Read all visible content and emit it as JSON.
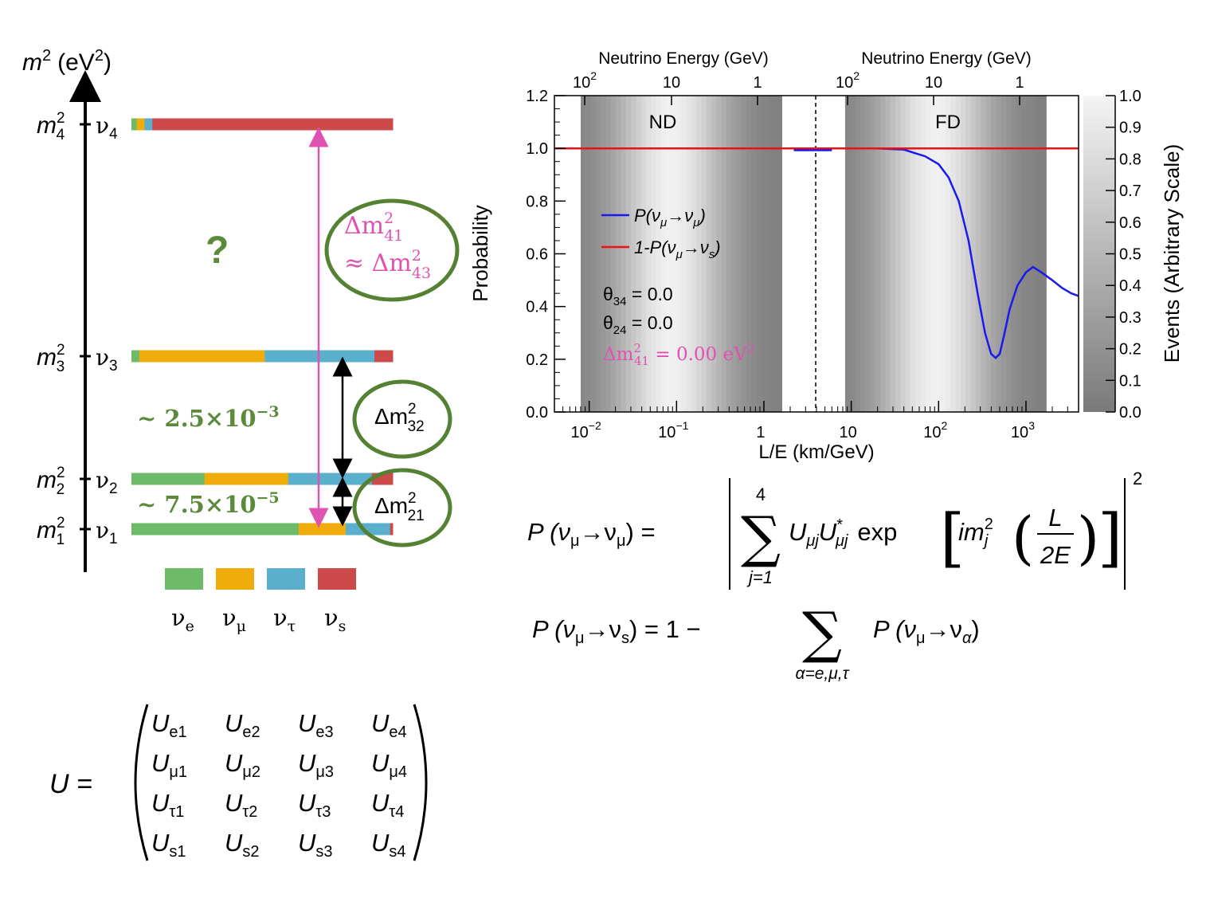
{
  "colors": {
    "nu_e": "#6dbb68",
    "nu_mu": "#f0ac0a",
    "nu_tau": "#5ab0cc",
    "nu_s": "#cc4a4a",
    "green_text": "#5a8a3a",
    "circle": "#558133",
    "magenta": "#e052b0",
    "curve_blue": "#1a1aee",
    "curve_red": "#ee1111"
  },
  "mass_diagram": {
    "axis_label_m": "m",
    "axis_label_sup": "2",
    "axis_label_unit": "(eV",
    "axis_label_unit_sup": "2",
    "axis_label_close": ")",
    "levels": [
      {
        "id": "4",
        "m_sub": "4",
        "nu": "ν",
        "nu_sub": "4",
        "composition": [
          {
            "flavor": "nu_e",
            "frac": 0.02
          },
          {
            "flavor": "nu_mu",
            "frac": 0.03
          },
          {
            "flavor": "nu_tau",
            "frac": 0.03
          },
          {
            "flavor": "nu_s",
            "frac": 0.92
          }
        ]
      },
      {
        "id": "3",
        "m_sub": "3",
        "nu": "ν",
        "nu_sub": "3",
        "composition": [
          {
            "flavor": "nu_e",
            "frac": 0.03
          },
          {
            "flavor": "nu_mu",
            "frac": 0.48
          },
          {
            "flavor": "nu_tau",
            "frac": 0.42
          },
          {
            "flavor": "nu_s",
            "frac": 0.07
          }
        ]
      },
      {
        "id": "2",
        "m_sub": "2",
        "nu": "ν",
        "nu_sub": "2",
        "composition": [
          {
            "flavor": "nu_e",
            "frac": 0.28
          },
          {
            "flavor": "nu_mu",
            "frac": 0.32
          },
          {
            "flavor": "nu_tau",
            "frac": 0.32
          },
          {
            "flavor": "nu_s",
            "frac": 0.08
          }
        ]
      },
      {
        "id": "1",
        "m_sub": "1",
        "nu": "ν",
        "nu_sub": "1",
        "composition": [
          {
            "flavor": "nu_e",
            "frac": 0.64
          },
          {
            "flavor": "nu_mu",
            "frac": 0.18
          },
          {
            "flavor": "nu_tau",
            "frac": 0.17
          },
          {
            "flavor": "nu_s",
            "frac": 0.01
          }
        ]
      }
    ],
    "question_mark": "?",
    "gap_32_value": "~ 2.5×10",
    "gap_32_exp": "−3",
    "gap_21_value": "~ 7.5×10",
    "gap_21_exp": "−5",
    "dm41_line1": "Δm",
    "dm41_sub1": "41",
    "dm41_sup1": "2",
    "dm41_line2": "≈ Δm",
    "dm41_sub2": "43",
    "dm41_sup2": "2",
    "dm32": "Δm",
    "dm32_sub": "32",
    "dm32_sup": "2",
    "dm21": "Δm",
    "dm21_sub": "21",
    "dm21_sup": "2",
    "legend": [
      {
        "flavor": "nu_e",
        "label": "ν",
        "sub": "e"
      },
      {
        "flavor": "nu_mu",
        "label": "ν",
        "sub": "μ"
      },
      {
        "flavor": "nu_tau",
        "label": "ν",
        "sub": "τ"
      },
      {
        "flavor": "nu_s",
        "label": "ν",
        "sub": "s"
      }
    ]
  },
  "chart_data": {
    "type": "line",
    "x_scale": "log",
    "xlabel": "L/E (km/GeV)",
    "ylabel": "Probability",
    "zlabel": "Events (Arbitrary Scale)",
    "top_axis_label": "Neutrino Energy (GeV)",
    "top_axis_label_2": "Neutrino Energy (GeV)",
    "ylim": [
      0,
      1.2
    ],
    "yticks": [
      "0.0",
      "0.2",
      "0.4",
      "0.6",
      "0.8",
      "1.0",
      "1.2"
    ],
    "zticks": [
      "0.0",
      "0.1",
      "0.2",
      "0.3",
      "0.4",
      "0.5",
      "0.6",
      "0.7",
      "0.8",
      "0.9",
      "1.0"
    ],
    "xtick_labels": [
      {
        "base": "10",
        "exp": "−2"
      },
      {
        "base": "10",
        "exp": "−1"
      },
      {
        "base": "1",
        "exp": ""
      },
      {
        "base": "10",
        "exp": ""
      },
      {
        "base": "10",
        "exp": "2"
      },
      {
        "base": "10",
        "exp": "3"
      }
    ],
    "top_tick_labels_nd": [
      {
        "base": "10",
        "exp": "2"
      },
      {
        "base": "10",
        "exp": ""
      },
      {
        "base": "1",
        "exp": ""
      }
    ],
    "top_tick_labels_fd": [
      {
        "base": "10",
        "exp": "2"
      },
      {
        "base": "10",
        "exp": ""
      },
      {
        "base": "1",
        "exp": ""
      }
    ],
    "region_labels": [
      "ND",
      "FD"
    ],
    "series": [
      {
        "name": "P(ν_μ→ν_μ)",
        "color": "#1a1aee",
        "x": [
          20,
          40,
          70,
          100,
          130,
          170,
          220,
          280,
          340,
          400,
          450,
          500,
          560,
          650,
          800,
          1000,
          1200,
          1500,
          2000,
          2600,
          3300,
          4000
        ],
        "y": [
          1.0,
          0.995,
          0.97,
          0.94,
          0.89,
          0.8,
          0.65,
          0.45,
          0.3,
          0.22,
          0.205,
          0.22,
          0.29,
          0.39,
          0.48,
          0.53,
          0.55,
          0.53,
          0.5,
          0.47,
          0.45,
          0.44
        ]
      },
      {
        "name": "1-P(ν_μ→ν_s)",
        "color": "#ee1111",
        "x": [
          0.004,
          4000
        ],
        "y": [
          1.0,
          1.0
        ]
      }
    ],
    "legend_label_1": "P(ν",
    "legend_label_1_sub": "μ",
    "legend_label_1_mid": "→ν",
    "legend_label_1_sub2": "μ",
    "legend_label_1_end": ")",
    "legend_label_2": "1-P(ν",
    "legend_label_2_sub": "μ",
    "legend_label_2_mid": "→ν",
    "legend_label_2_sub2": "s",
    "legend_label_2_end": ")",
    "params": {
      "theta34": "θ",
      "theta34_sub": "34",
      "theta34_val": " = 0.0",
      "theta24": "θ",
      "theta24_sub": "24",
      "theta24_val": " = 0.0",
      "dm41": "Δm",
      "dm41_sub": "41",
      "dm41_sup": "2",
      "dm41_val": " = 0.00 eV",
      "dm41_unit_sup": "2"
    }
  },
  "equations": {
    "p_mumu_lhs": "P (ν",
    "p_mumu_lhs_sub": "μ",
    "p_mumu_arrow": "→ν",
    "p_mumu_lhs_sub2": "μ",
    "p_mumu_close": ") =",
    "sum_top": "4",
    "sum_bottom": "j=1",
    "sum_body_U": "U",
    "sum_body_U_sub": "μj",
    "sum_body_U2": "U",
    "sum_body_U2_sub": "μj",
    "sum_body_U2_sup": "*",
    "exp_word": "exp",
    "im_text": "im",
    "im_sub": "j",
    "im_sup": "2",
    "frac_num": "L",
    "frac_den": "2E",
    "abs_power": "2",
    "p_mus_lhs": "P (ν",
    "p_mus_lhs_sub": "μ",
    "p_mus_arrow": "→ν",
    "p_mus_lhs_sub2": "s",
    "p_mus_mid": ") = 1 −",
    "sum2_bottom": "α=e,μ,τ",
    "p_mus_rhs": "P (ν",
    "p_mus_rhs_sub": "μ",
    "p_mus_rhs_arrow": "→ν",
    "p_mus_rhs_sub2": "α",
    "p_mus_rhs_close": ")",
    "u_lhs": "U =",
    "matrix": [
      [
        {
          "sub": "e1"
        },
        {
          "sub": "e2"
        },
        {
          "sub": "e3"
        },
        {
          "sub": "e4"
        }
      ],
      [
        {
          "sub": "μ1"
        },
        {
          "sub": "μ2"
        },
        {
          "sub": "μ3"
        },
        {
          "sub": "μ4"
        }
      ],
      [
        {
          "sub": "τ1"
        },
        {
          "sub": "τ2"
        },
        {
          "sub": "τ3"
        },
        {
          "sub": "τ4"
        }
      ],
      [
        {
          "sub": "s1"
        },
        {
          "sub": "s2"
        },
        {
          "sub": "s3"
        },
        {
          "sub": "s4"
        }
      ]
    ],
    "matrix_symbol": "U"
  }
}
